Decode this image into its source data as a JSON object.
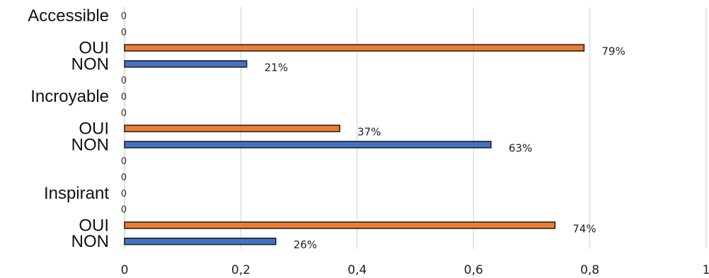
{
  "chart_data": {
    "type": "bar",
    "orientation": "horizontal",
    "xlim": [
      0,
      1
    ],
    "x_ticks": [
      0,
      0.2,
      0.4,
      0.6,
      0.8,
      1
    ],
    "x_tick_labels": [
      "0",
      "0,2",
      "0,4",
      "0,6",
      "0,8",
      "1"
    ],
    "grid": "vertical",
    "colors": {
      "OUI": "#ED7D31",
      "NON": "#4472C4"
    },
    "rows": [
      {
        "label": "Accessible",
        "value": 0,
        "value_label": "0",
        "kind": "zero"
      },
      {
        "label": "",
        "value": 0,
        "value_label": "0",
        "kind": "zero"
      },
      {
        "label": "OUI",
        "value": 0.79,
        "value_label": "79%",
        "kind": "OUI"
      },
      {
        "label": "NON",
        "value": 0.21,
        "value_label": "21%",
        "kind": "NON"
      },
      {
        "label": "",
        "value": 0,
        "value_label": "0",
        "kind": "zero"
      },
      {
        "label": "Incroyable",
        "value": 0,
        "value_label": "0",
        "kind": "zero"
      },
      {
        "label": "",
        "value": 0,
        "value_label": "0",
        "kind": "zero"
      },
      {
        "label": "OUI",
        "value": 0.37,
        "value_label": "37%",
        "kind": "OUI"
      },
      {
        "label": "NON",
        "value": 0.63,
        "value_label": "63%",
        "kind": "NON"
      },
      {
        "label": "",
        "value": 0,
        "value_label": "0",
        "kind": "zero"
      },
      {
        "label": "",
        "value": 0,
        "value_label": "0",
        "kind": "zero"
      },
      {
        "label": "Inspirant",
        "value": 0,
        "value_label": "0",
        "kind": "zero"
      },
      {
        "label": "",
        "value": 0,
        "value_label": "0",
        "kind": "zero"
      },
      {
        "label": "OUI",
        "value": 0.74,
        "value_label": "74%",
        "kind": "OUI"
      },
      {
        "label": "NON",
        "value": 0.26,
        "value_label": "26%",
        "kind": "NON"
      }
    ]
  }
}
